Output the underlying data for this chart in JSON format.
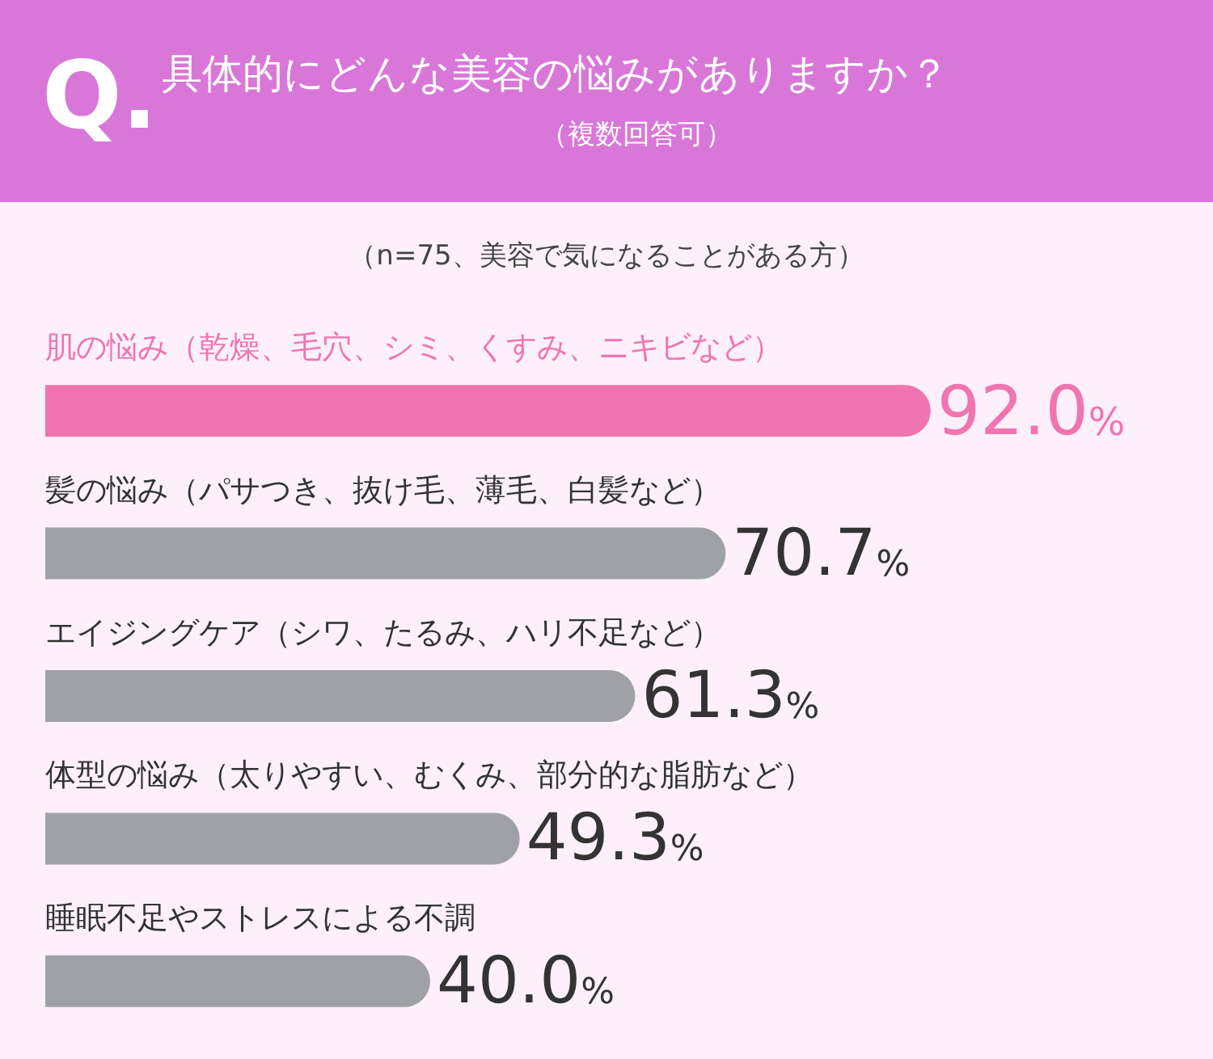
{
  "chart_data": {
    "type": "bar",
    "orientation": "horizontal",
    "title": "具体的にどんな美容の悩みがありますか？",
    "subtitle": "（複数回答可）",
    "annotations": [
      "Q.",
      "（n=75、美容で気になることがある方）"
    ],
    "categories": [
      "肌の悩み（乾燥、毛穴、シミ、くすみ、ニキビなど）",
      "髪の悩み（パサつき、抜け毛、薄毛、白髪など）",
      "エイジングケア（シワ、たるみ、ハリ不足など）",
      "体型の悩み（太りやすい、むくみ、部分的な脂肪など）",
      "睡眠不足やストレスによる不調"
    ],
    "values": [
      92.0,
      70.7,
      61.3,
      49.3,
      40.0
    ],
    "value_labels": [
      "92.0%",
      "70.7%",
      "61.3%",
      "49.3%",
      "40.0%"
    ],
    "colors": [
      "#f074b0",
      "#a0a1a6",
      "#a0a1a6",
      "#a0a1a6",
      "#a0a1a6"
    ],
    "tick_labels": "y"
  }
}
